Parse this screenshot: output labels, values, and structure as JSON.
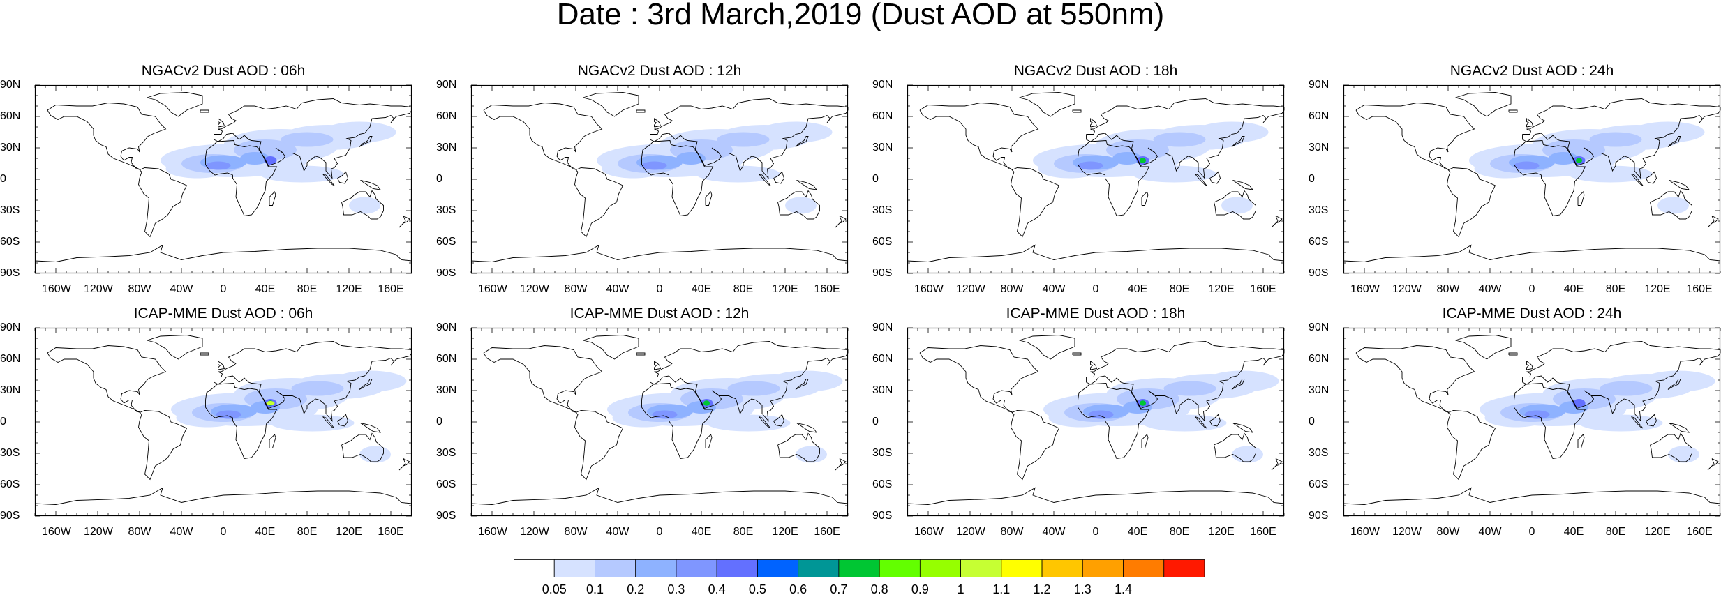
{
  "title": "Date : 3rd March,2019 (Dust AOD at 550nm)",
  "panels": [
    {
      "title": "NGACv2 Dust AOD : 06h",
      "model": "NGACv2",
      "hour": "06h",
      "hotspot": "low"
    },
    {
      "title": "NGACv2 Dust AOD : 12h",
      "model": "NGACv2",
      "hour": "12h",
      "hotspot": "none"
    },
    {
      "title": "NGACv2 Dust AOD : 18h",
      "model": "NGACv2",
      "hour": "18h",
      "hotspot": "mid"
    },
    {
      "title": "NGACv2 Dust AOD : 24h",
      "model": "NGACv2",
      "hour": "24h",
      "hotspot": "mid"
    },
    {
      "title": "ICAP-MME Dust AOD : 06h",
      "model": "ICAP-MME",
      "hour": "06h",
      "hotspot": "high"
    },
    {
      "title": "ICAP-MME Dust AOD : 12h",
      "model": "ICAP-MME",
      "hour": "12h",
      "hotspot": "mid"
    },
    {
      "title": "ICAP-MME Dust AOD : 18h",
      "model": "ICAP-MME",
      "hour": "18h",
      "hotspot": "mid"
    },
    {
      "title": "ICAP-MME Dust AOD : 24h",
      "model": "ICAP-MME",
      "hour": "24h",
      "hotspot": "low"
    }
  ],
  "lat_ticks": [
    "90N",
    "60N",
    "30N",
    "0",
    "30S",
    "60S",
    "90S"
  ],
  "lon_ticks": [
    "160W",
    "120W",
    "80W",
    "40W",
    "0",
    "40E",
    "80E",
    "120E",
    "160E"
  ],
  "colorbar": {
    "colors": [
      "#ffffff",
      "#d6e2ff",
      "#b5c9ff",
      "#8eb2ff",
      "#7f96ff",
      "#6370ff",
      "#0063ff",
      "#009696",
      "#00c633",
      "#63ff00",
      "#96ff00",
      "#c6ff33",
      "#ffff00",
      "#ffc600",
      "#ffa000",
      "#ff7c00",
      "#ff1900"
    ],
    "labels": [
      "0.05",
      "0.1",
      "0.2",
      "0.3",
      "0.4",
      "0.5",
      "0.6",
      "0.7",
      "0.8",
      "0.9",
      "1",
      "1.1",
      "1.2",
      "1.3",
      "1.4"
    ]
  }
}
